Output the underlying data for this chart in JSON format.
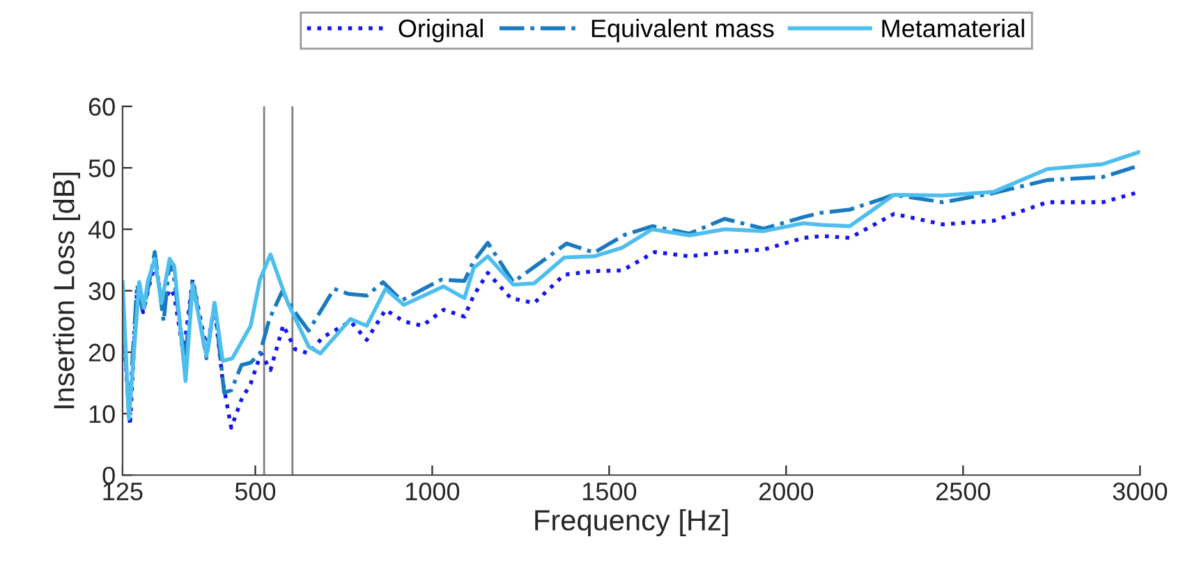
{
  "chart_data": {
    "type": "line",
    "xlabel": "Frequency [Hz]",
    "ylabel": "Insertion Loss [dB]",
    "xlim": [
      125,
      3000
    ],
    "xticks": [
      125,
      500,
      1000,
      1500,
      2000,
      2500,
      3000
    ],
    "ylim": [
      0,
      60
    ],
    "yticks": [
      0,
      10,
      20,
      30,
      40,
      50,
      60
    ],
    "grid": false,
    "legend": "top",
    "ref_lines": [
      {
        "axis": "x",
        "value": 525,
        "color": "#808080"
      },
      {
        "axis": "x",
        "value": 605,
        "color": "#808080"
      }
    ],
    "series": [
      {
        "name": "Original",
        "color": "#1515f0",
        "line_style": "dotted",
        "x": [
          125,
          146,
          166,
          183,
          198,
          216,
          238,
          261,
          271,
          297,
          323,
          362,
          385,
          408,
          432,
          461,
          487,
          516,
          543,
          579,
          612,
          651,
          690,
          769,
          815,
          868,
          920,
          972,
          1032,
          1091,
          1117,
          1157,
          1222,
          1288,
          1373,
          1458,
          1537,
          1629,
          1727,
          1826,
          1937,
          2049,
          2101,
          2180,
          2305,
          2443,
          2587,
          2738,
          2895,
          3000
        ],
        "values": [
          25.8,
          8.1,
          30.3,
          26.5,
          30.3,
          34.4,
          28,
          30.3,
          29.2,
          19.8,
          31.8,
          20.5,
          27.3,
          15.3,
          7.7,
          12.3,
          14.9,
          19.8,
          17.1,
          24.4,
          20.5,
          19.8,
          22.4,
          25,
          22,
          26.9,
          25,
          24.3,
          26.9,
          25.8,
          29.2,
          32.9,
          28.8,
          28,
          32.6,
          33.2,
          33.3,
          36.3,
          35.6,
          36.3,
          36.7,
          38.6,
          38.9,
          38.6,
          42.5,
          40.8,
          41.4,
          44.4,
          44.4,
          46.1
        ]
      },
      {
        "name": "Equivalent mass",
        "color": "#1a7abf",
        "line_style": "dashdot",
        "x": [
          125,
          143,
          166,
          183,
          198,
          216,
          241,
          258,
          271,
          301,
          323,
          362,
          385,
          412,
          432,
          461,
          487,
          513,
          540,
          576,
          612,
          651,
          723,
          762,
          815,
          861,
          913,
          1025,
          1091,
          1117,
          1157,
          1229,
          1380,
          1458,
          1544,
          1622,
          1727,
          1826,
          1937,
          2049,
          2101,
          2180,
          2305,
          2443,
          2587,
          2738,
          2895,
          3000
        ],
        "values": [
          28,
          9.6,
          31,
          26.5,
          30.7,
          36.3,
          25,
          34.8,
          31.8,
          18.3,
          31.8,
          19,
          28,
          13.4,
          13.8,
          17.9,
          18.3,
          19.8,
          25.4,
          29.9,
          26.5,
          23.5,
          30.3,
          29.5,
          29.2,
          31.4,
          28.4,
          31.8,
          31.6,
          34.8,
          37.8,
          31.4,
          37.7,
          36.2,
          39.1,
          40.5,
          39.3,
          41.7,
          40.1,
          42,
          42.7,
          43.2,
          45.6,
          44.4,
          45.9,
          48,
          48.5,
          50.4
        ]
      },
      {
        "name": "Metamaterial",
        "color": "#4dbeee",
        "line_style": "solid",
        "x": [
          125,
          143,
          172,
          185,
          196,
          216,
          235,
          258,
          271,
          303,
          323,
          362,
          385,
          408,
          435,
          487,
          513,
          543,
          592,
          651,
          684,
          769,
          815,
          868,
          920,
          1032,
          1091,
          1117,
          1157,
          1229,
          1288,
          1373,
          1458,
          1537,
          1622,
          1727,
          1826,
          1937,
          2049,
          2101,
          2180,
          2305,
          2443,
          2587,
          2738,
          2895,
          3000
        ],
        "values": [
          31.4,
          9.2,
          31.4,
          27.3,
          31.4,
          35.2,
          28,
          35.2,
          34,
          15.3,
          31,
          19.4,
          28,
          18.6,
          19,
          24.3,
          31.8,
          35.9,
          28,
          20.9,
          19.8,
          25.4,
          24.3,
          30.3,
          27.7,
          30.7,
          28.8,
          33.7,
          35.6,
          31,
          31.2,
          35.4,
          35.6,
          37,
          40,
          39,
          40,
          39.7,
          41,
          40.7,
          40.5,
          45.6,
          45.5,
          46.1,
          49.8,
          50.6,
          52.6
        ]
      }
    ]
  }
}
